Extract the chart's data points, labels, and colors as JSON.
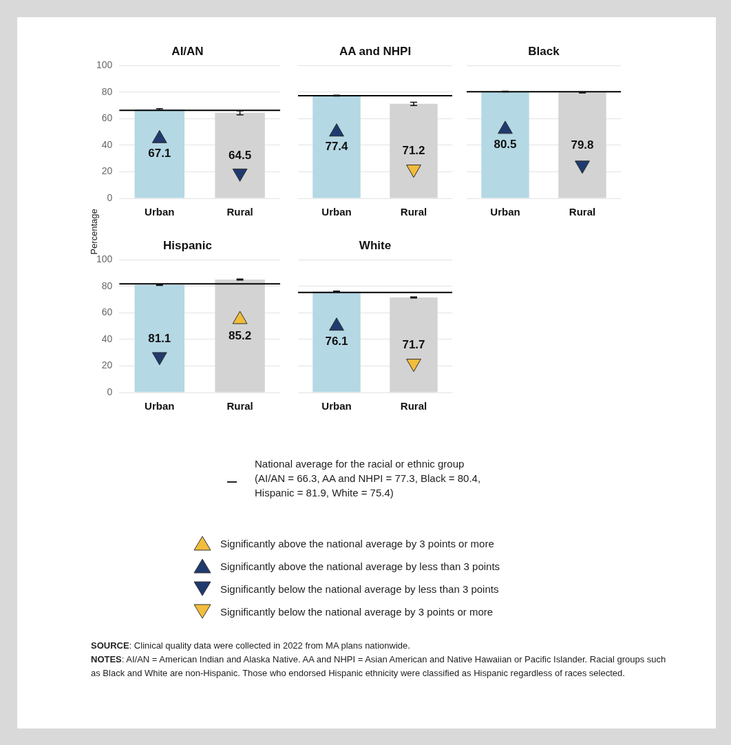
{
  "chart_data": [
    {
      "type": "bar",
      "title": "AI/AN",
      "ylabel": "Percentage",
      "categories": [
        "Urban",
        "Rural"
      ],
      "ylim": [
        0,
        100
      ],
      "yticks": [
        0,
        20,
        40,
        60,
        80,
        100
      ],
      "grid": "y",
      "ref_lines": [
        {
          "axis": "y",
          "value": 66.3,
          "color": "#000000"
        }
      ],
      "series": [
        {
          "type": "bar",
          "colors": [
            "#b4d8e4",
            "#d3d3d3"
          ],
          "values": [
            67.1,
            64.5
          ],
          "value_labels": [
            "67.1",
            "64.5"
          ],
          "errors": [
            0.5,
            1.5
          ]
        },
        {
          "type": "scatter",
          "marker": "triangle",
          "color": "#1f3a6e",
          "x": [
            "Urban"
          ],
          "values": [
            45
          ]
        },
        {
          "type": "scatter",
          "marker": "triangle-down",
          "color": "#1f3a6e",
          "x": [
            "Rural"
          ],
          "values": [
            19
          ]
        }
      ]
    },
    {
      "type": "bar",
      "title": "AA and NHPI",
      "categories": [
        "Urban",
        "Rural"
      ],
      "ylim": [
        0,
        100
      ],
      "yticks": [
        0,
        20,
        40,
        60,
        80,
        100
      ],
      "grid": "y",
      "tick_labels": "x",
      "ref_lines": [
        {
          "axis": "y",
          "value": 77.3,
          "color": "#000000"
        }
      ],
      "series": [
        {
          "type": "bar",
          "colors": [
            "#b4d8e4",
            "#d3d3d3"
          ],
          "values": [
            77.4,
            71.2
          ],
          "value_labels": [
            "77.4",
            "71.2"
          ],
          "errors": [
            0.3,
            1.2
          ]
        },
        {
          "type": "scatter",
          "marker": "triangle",
          "color": "#1f3a6e",
          "x": [
            "Urban"
          ],
          "values": [
            50
          ]
        },
        {
          "type": "scatter",
          "marker": "triangle-down",
          "color": "#f2bc3c",
          "x": [
            "Rural"
          ],
          "values": [
            22
          ]
        }
      ]
    },
    {
      "type": "bar",
      "title": "Black",
      "categories": [
        "Urban",
        "Rural"
      ],
      "ylim": [
        0,
        100
      ],
      "yticks": [
        0,
        20,
        40,
        60,
        80,
        100
      ],
      "grid": "y",
      "tick_labels": "x",
      "ref_lines": [
        {
          "axis": "y",
          "value": 80.4,
          "color": "#000000"
        }
      ],
      "series": [
        {
          "type": "bar",
          "colors": [
            "#b4d8e4",
            "#d3d3d3"
          ],
          "values": [
            80.5,
            79.8
          ],
          "value_labels": [
            "80.5",
            "79.8"
          ],
          "errors": [
            0.3,
            0.4
          ]
        },
        {
          "type": "scatter",
          "marker": "triangle",
          "color": "#1f3a6e",
          "x": [
            "Urban"
          ],
          "values": [
            52
          ]
        },
        {
          "type": "scatter",
          "marker": "triangle-down",
          "color": "#1f3a6e",
          "x": [
            "Rural"
          ],
          "values": [
            25
          ]
        }
      ]
    },
    {
      "type": "bar",
      "title": "Hispanic",
      "categories": [
        "Urban",
        "Rural"
      ],
      "ylim": [
        0,
        100
      ],
      "yticks": [
        0,
        20,
        40,
        60,
        80,
        100
      ],
      "grid": "y",
      "ref_lines": [
        {
          "axis": "y",
          "value": 81.9,
          "color": "#000000"
        }
      ],
      "series": [
        {
          "type": "bar",
          "colors": [
            "#b4d8e4",
            "#d3d3d3"
          ],
          "values": [
            81.1,
            85.2
          ],
          "value_labels": [
            "81.1",
            "85.2"
          ],
          "errors": [
            0.4,
            0.4
          ]
        },
        {
          "type": "scatter",
          "marker": "triangle-down",
          "color": "#1f3a6e",
          "x": [
            "Urban"
          ],
          "values": [
            27
          ]
        },
        {
          "type": "scatter",
          "marker": "triangle",
          "color": "#f2bc3c",
          "x": [
            "Rural"
          ],
          "values": [
            55
          ]
        }
      ]
    },
    {
      "type": "bar",
      "title": "White",
      "categories": [
        "Urban",
        "Rural"
      ],
      "ylim": [
        0,
        100
      ],
      "yticks": [
        0,
        20,
        40,
        60,
        80,
        100
      ],
      "grid": "y",
      "tick_labels": "x",
      "ref_lines": [
        {
          "axis": "y",
          "value": 75.4,
          "color": "#000000"
        }
      ],
      "series": [
        {
          "type": "bar",
          "colors": [
            "#b4d8e4",
            "#d3d3d3"
          ],
          "values": [
            76.1,
            71.7
          ],
          "value_labels": [
            "76.1",
            "71.7"
          ],
          "errors": [
            0.4,
            0.4
          ]
        },
        {
          "type": "scatter",
          "marker": "triangle",
          "color": "#1f3a6e",
          "x": [
            "Urban"
          ],
          "values": [
            50
          ]
        },
        {
          "type": "scatter",
          "marker": "triangle-down",
          "color": "#f2bc3c",
          "x": [
            "Rural"
          ],
          "values": [
            22
          ]
        }
      ]
    },
    {
      "type": "other",
      "annotations": [
        "National average for the racial or ethnic group (AI/AN = 66.3, AA and NHPI = 77.3, Black = 80.4, Hispanic = 81.9, White = 75.4)",
        "Significantly above the national average by 3 points or more",
        "Significantly above the national average by less than 3 points",
        "Significantly below the national average by less than 3 points",
        "Significantly below the national average by 3 points or more",
        "SOURCE: Clinical quality data were collected in 2022 from MA plans nationwide.",
        "NOTES: AI/AN = American Indian and Alaska Native. AA and NHPI = Asian American and Native Hawaiian or Pacific Islander. Racial groups such as Black and White are non-Hispanic. Those who endorsed Hispanic ethnicity were classified as Hispanic regardless of races selected."
      ]
    }
  ]
}
